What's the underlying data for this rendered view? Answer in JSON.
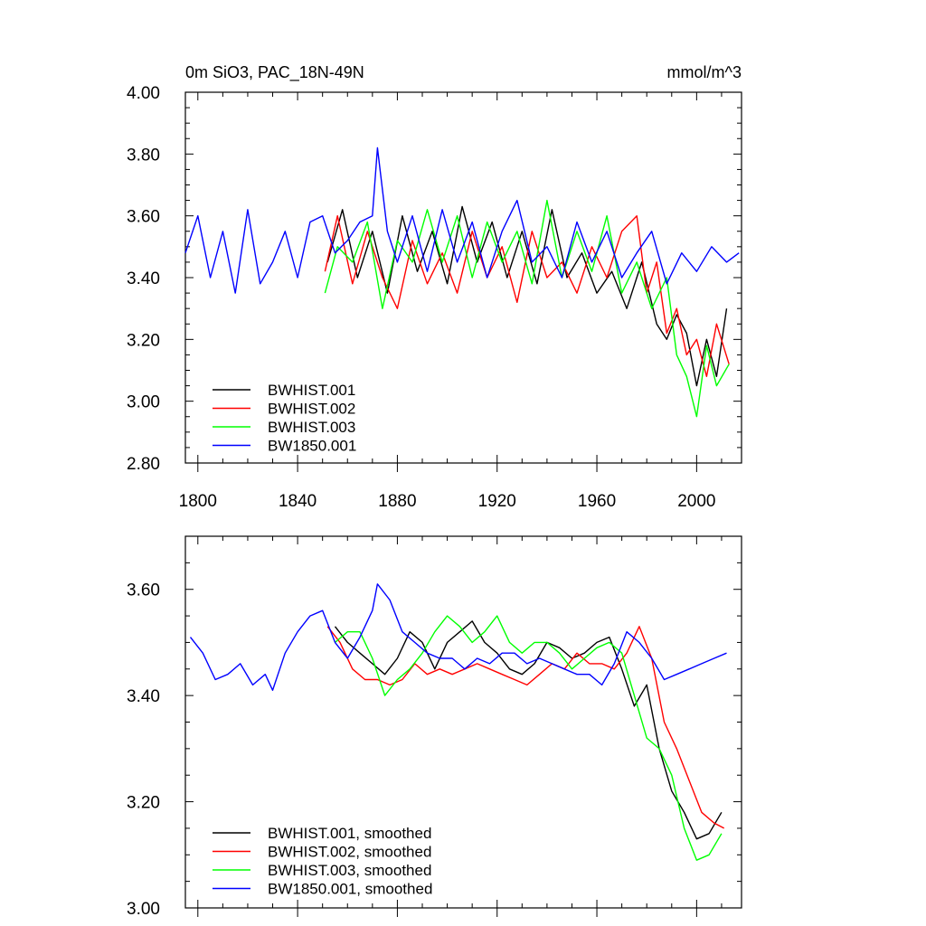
{
  "chart_data": [
    {
      "type": "line",
      "title_left": "0m SiO3, PAC_18N-49N",
      "title_right": "mmol/m^3",
      "xlabel": "",
      "ylabel": "",
      "xlim": [
        1795,
        2018
      ],
      "ylim": [
        2.8,
        4.0
      ],
      "y_ticks": [
        2.8,
        3.0,
        3.2,
        3.4,
        3.6,
        3.8,
        4.0
      ],
      "y_tick_labels": [
        "2.80",
        "3.00",
        "3.20",
        "3.40",
        "3.60",
        "3.80",
        "4.00"
      ],
      "x_ticks": [
        1800,
        1840,
        1880,
        1920,
        1960,
        2000
      ],
      "x_tick_labels": [
        "1800",
        "1840",
        "1880",
        "1920",
        "1960",
        "2000"
      ],
      "grid": false,
      "legend": "bottom-left",
      "series": [
        {
          "name": "BWHIST.001",
          "color": "#000000",
          "x": [
            1852,
            1858,
            1864,
            1870,
            1876,
            1882,
            1888,
            1894,
            1900,
            1906,
            1912,
            1918,
            1924,
            1930,
            1936,
            1942,
            1948,
            1954,
            1960,
            1966,
            1972,
            1978,
            1984,
            1988,
            1992,
            1996,
            2000,
            2004,
            2008,
            2012
          ],
          "y": [
            3.45,
            3.62,
            3.4,
            3.55,
            3.35,
            3.6,
            3.42,
            3.55,
            3.38,
            3.63,
            3.45,
            3.58,
            3.4,
            3.55,
            3.38,
            3.62,
            3.4,
            3.48,
            3.35,
            3.42,
            3.3,
            3.45,
            3.25,
            3.2,
            3.28,
            3.22,
            3.05,
            3.2,
            3.08,
            3.3
          ]
        },
        {
          "name": "BWHIST.002",
          "color": "#ff0000",
          "x": [
            1851,
            1856,
            1862,
            1868,
            1874,
            1880,
            1886,
            1892,
            1898,
            1904,
            1910,
            1916,
            1922,
            1928,
            1934,
            1940,
            1946,
            1952,
            1958,
            1964,
            1970,
            1976,
            1980,
            1984,
            1988,
            1992,
            1996,
            2000,
            2004,
            2008,
            2013
          ],
          "y": [
            3.42,
            3.6,
            3.38,
            3.55,
            3.4,
            3.3,
            3.52,
            3.38,
            3.48,
            3.35,
            3.55,
            3.4,
            3.5,
            3.32,
            3.55,
            3.4,
            3.45,
            3.35,
            3.5,
            3.4,
            3.55,
            3.6,
            3.35,
            3.45,
            3.22,
            3.3,
            3.15,
            3.2,
            3.08,
            3.25,
            3.12
          ]
        },
        {
          "name": "BWHIST.003",
          "color": "#00ff00",
          "x": [
            1851,
            1856,
            1862,
            1868,
            1874,
            1880,
            1886,
            1892,
            1898,
            1904,
            1910,
            1916,
            1922,
            1928,
            1934,
            1940,
            1946,
            1952,
            1958,
            1964,
            1970,
            1976,
            1982,
            1988,
            1992,
            1996,
            2000,
            2004,
            2008,
            2013
          ],
          "y": [
            3.35,
            3.5,
            3.45,
            3.58,
            3.3,
            3.52,
            3.45,
            3.62,
            3.45,
            3.6,
            3.4,
            3.58,
            3.45,
            3.55,
            3.38,
            3.65,
            3.4,
            3.55,
            3.42,
            3.6,
            3.35,
            3.45,
            3.3,
            3.4,
            3.15,
            3.08,
            2.95,
            3.18,
            3.05,
            3.12
          ]
        },
        {
          "name": "BW1850.001",
          "color": "#0000ff",
          "x": [
            1795,
            1800,
            1805,
            1810,
            1815,
            1820,
            1825,
            1830,
            1835,
            1840,
            1845,
            1850,
            1855,
            1860,
            1865,
            1870,
            1872,
            1876,
            1880,
            1886,
            1892,
            1898,
            1904,
            1910,
            1916,
            1922,
            1928,
            1934,
            1940,
            1946,
            1952,
            1958,
            1964,
            1970,
            1976,
            1982,
            1988,
            1994,
            2000,
            2006,
            2012,
            2017
          ],
          "y": [
            3.48,
            3.6,
            3.4,
            3.55,
            3.35,
            3.62,
            3.38,
            3.45,
            3.55,
            3.4,
            3.58,
            3.6,
            3.48,
            3.52,
            3.58,
            3.6,
            3.82,
            3.55,
            3.45,
            3.6,
            3.42,
            3.62,
            3.45,
            3.58,
            3.4,
            3.55,
            3.65,
            3.45,
            3.5,
            3.4,
            3.58,
            3.45,
            3.55,
            3.4,
            3.48,
            3.55,
            3.38,
            3.48,
            3.42,
            3.5,
            3.45,
            3.48
          ]
        }
      ]
    },
    {
      "type": "line",
      "title_left": "",
      "title_right": "",
      "xlabel": "",
      "ylabel": "",
      "xlim": [
        1795,
        2018
      ],
      "ylim": [
        3.0,
        3.7
      ],
      "y_ticks": [
        3.0,
        3.2,
        3.4,
        3.6
      ],
      "y_tick_labels": [
        "3.00",
        "3.20",
        "3.40",
        "3.60"
      ],
      "x_ticks": [
        1800,
        1840,
        1880,
        1920,
        1960,
        2000
      ],
      "grid": false,
      "legend": "bottom-left",
      "series": [
        {
          "name": "BWHIST.001, smoothed",
          "color": "#000000",
          "x": [
            1855,
            1860,
            1865,
            1870,
            1875,
            1880,
            1885,
            1890,
            1895,
            1900,
            1905,
            1910,
            1915,
            1920,
            1925,
            1930,
            1935,
            1940,
            1945,
            1950,
            1955,
            1960,
            1965,
            1970,
            1975,
            1980,
            1985,
            1990,
            1995,
            2000,
            2005,
            2010
          ],
          "y": [
            3.53,
            3.5,
            3.48,
            3.46,
            3.44,
            3.47,
            3.52,
            3.5,
            3.45,
            3.5,
            3.52,
            3.54,
            3.5,
            3.48,
            3.45,
            3.44,
            3.46,
            3.5,
            3.49,
            3.47,
            3.48,
            3.5,
            3.51,
            3.45,
            3.38,
            3.42,
            3.3,
            3.22,
            3.18,
            3.13,
            3.14,
            3.18
          ]
        },
        {
          "name": "BWHIST.002, smoothed",
          "color": "#ff0000",
          "x": [
            1852,
            1857,
            1862,
            1867,
            1872,
            1877,
            1882,
            1887,
            1892,
            1897,
            1902,
            1907,
            1912,
            1917,
            1922,
            1927,
            1932,
            1937,
            1942,
            1947,
            1952,
            1957,
            1962,
            1967,
            1972,
            1977,
            1982,
            1987,
            1992,
            1997,
            2002,
            2007,
            2011
          ],
          "y": [
            3.53,
            3.5,
            3.45,
            3.43,
            3.43,
            3.42,
            3.43,
            3.46,
            3.44,
            3.45,
            3.44,
            3.45,
            3.46,
            3.45,
            3.44,
            3.43,
            3.42,
            3.44,
            3.46,
            3.45,
            3.48,
            3.46,
            3.46,
            3.45,
            3.48,
            3.53,
            3.47,
            3.35,
            3.3,
            3.24,
            3.18,
            3.16,
            3.15
          ]
        },
        {
          "name": "BWHIST.003, smoothed",
          "color": "#00ff00",
          "x": [
            1855,
            1860,
            1865,
            1870,
            1875,
            1880,
            1885,
            1890,
            1895,
            1900,
            1905,
            1910,
            1915,
            1920,
            1925,
            1930,
            1935,
            1940,
            1945,
            1950,
            1955,
            1960,
            1965,
            1970,
            1975,
            1980,
            1985,
            1990,
            1995,
            2000,
            2005,
            2010
          ],
          "y": [
            3.5,
            3.52,
            3.52,
            3.47,
            3.4,
            3.43,
            3.45,
            3.48,
            3.52,
            3.55,
            3.53,
            3.5,
            3.52,
            3.55,
            3.5,
            3.48,
            3.5,
            3.5,
            3.48,
            3.45,
            3.47,
            3.49,
            3.5,
            3.48,
            3.4,
            3.32,
            3.3,
            3.25,
            3.15,
            3.09,
            3.1,
            3.14
          ]
        },
        {
          "name": "BW1850.001, smoothed",
          "color": "#0000ff",
          "x": [
            1797,
            1802,
            1807,
            1812,
            1817,
            1822,
            1827,
            1830,
            1835,
            1840,
            1845,
            1850,
            1855,
            1860,
            1865,
            1870,
            1872,
            1877,
            1882,
            1887,
            1892,
            1897,
            1902,
            1907,
            1912,
            1917,
            1922,
            1927,
            1932,
            1937,
            1942,
            1947,
            1952,
            1957,
            1962,
            1967,
            1972,
            1977,
            1982,
            1987,
            1992,
            1997,
            2002,
            2007,
            2012
          ],
          "y": [
            3.51,
            3.48,
            3.43,
            3.44,
            3.46,
            3.42,
            3.44,
            3.41,
            3.48,
            3.52,
            3.55,
            3.56,
            3.5,
            3.47,
            3.51,
            3.56,
            3.61,
            3.58,
            3.52,
            3.5,
            3.48,
            3.47,
            3.47,
            3.45,
            3.47,
            3.46,
            3.48,
            3.48,
            3.46,
            3.47,
            3.46,
            3.45,
            3.44,
            3.44,
            3.42,
            3.46,
            3.52,
            3.5,
            3.47,
            3.43,
            3.44,
            3.45,
            3.46,
            3.47,
            3.48
          ]
        }
      ]
    }
  ]
}
